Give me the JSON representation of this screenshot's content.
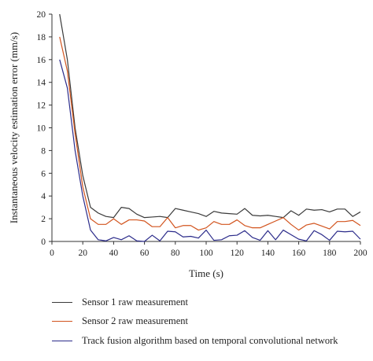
{
  "chart_data": {
    "type": "line",
    "xlabel": "Time (s)",
    "ylabel": "Instantaneous velocity estimation error (mm/s)",
    "xlim": [
      0,
      200
    ],
    "ylim": [
      0,
      20
    ],
    "xticks": [
      0,
      20,
      40,
      60,
      80,
      100,
      120,
      140,
      160,
      180,
      200
    ],
    "yticks": [
      0,
      2,
      4,
      6,
      8,
      10,
      12,
      14,
      16,
      18,
      20
    ],
    "grid": false,
    "legend_position": "bottom",
    "x": [
      5,
      10,
      15,
      20,
      25,
      30,
      35,
      40,
      45,
      50,
      55,
      60,
      65,
      70,
      75,
      80,
      85,
      90,
      95,
      100,
      105,
      110,
      115,
      120,
      125,
      130,
      135,
      140,
      145,
      150,
      155,
      160,
      165,
      170,
      175,
      180,
      185,
      190,
      195,
      200
    ],
    "series": [
      {
        "name": "Sensor 1 raw measurement",
        "color": "#3a3a3a",
        "values": [
          20,
          16,
          10,
          5.8,
          3.0,
          2.5,
          2.2,
          2.1,
          3.0,
          2.9,
          2.4,
          2.1,
          2.15,
          2.2,
          2.1,
          2.9,
          2.75,
          2.6,
          2.45,
          2.2,
          2.65,
          2.5,
          2.45,
          2.4,
          2.9,
          2.3,
          2.25,
          2.3,
          2.2,
          2.1,
          2.7,
          2.3,
          2.85,
          2.75,
          2.8,
          2.6,
          2.85,
          2.85,
          2.2,
          2.6
        ]
      },
      {
        "name": "Sensor 2 raw measurement",
        "color": "#d2541e",
        "values": [
          18,
          15,
          9.5,
          4.8,
          2.0,
          1.5,
          1.5,
          2.0,
          1.5,
          1.9,
          1.9,
          1.8,
          1.3,
          1.3,
          2.1,
          1.2,
          1.4,
          1.4,
          1.0,
          1.2,
          1.75,
          1.5,
          1.5,
          1.9,
          1.4,
          1.2,
          1.2,
          1.5,
          1.8,
          2.1,
          1.5,
          1.0,
          1.45,
          1.6,
          1.35,
          1.1,
          1.75,
          1.75,
          1.85,
          1.4
        ]
      },
      {
        "name": "Track fusion algorithm based on temporal convolutional network",
        "color": "#2b2b8a",
        "values": [
          16,
          13.5,
          8.0,
          4.0,
          1.0,
          0.15,
          0.05,
          0.35,
          0.15,
          0.5,
          0.05,
          0.0,
          0.55,
          0.05,
          0.9,
          0.85,
          0.4,
          0.45,
          0.3,
          1.0,
          0.1,
          0.15,
          0.5,
          0.55,
          0.95,
          0.35,
          0.1,
          0.95,
          0.15,
          1.0,
          0.6,
          0.2,
          0.05,
          0.95,
          0.6,
          0.1,
          0.9,
          0.85,
          0.9,
          0.2
        ]
      }
    ]
  }
}
